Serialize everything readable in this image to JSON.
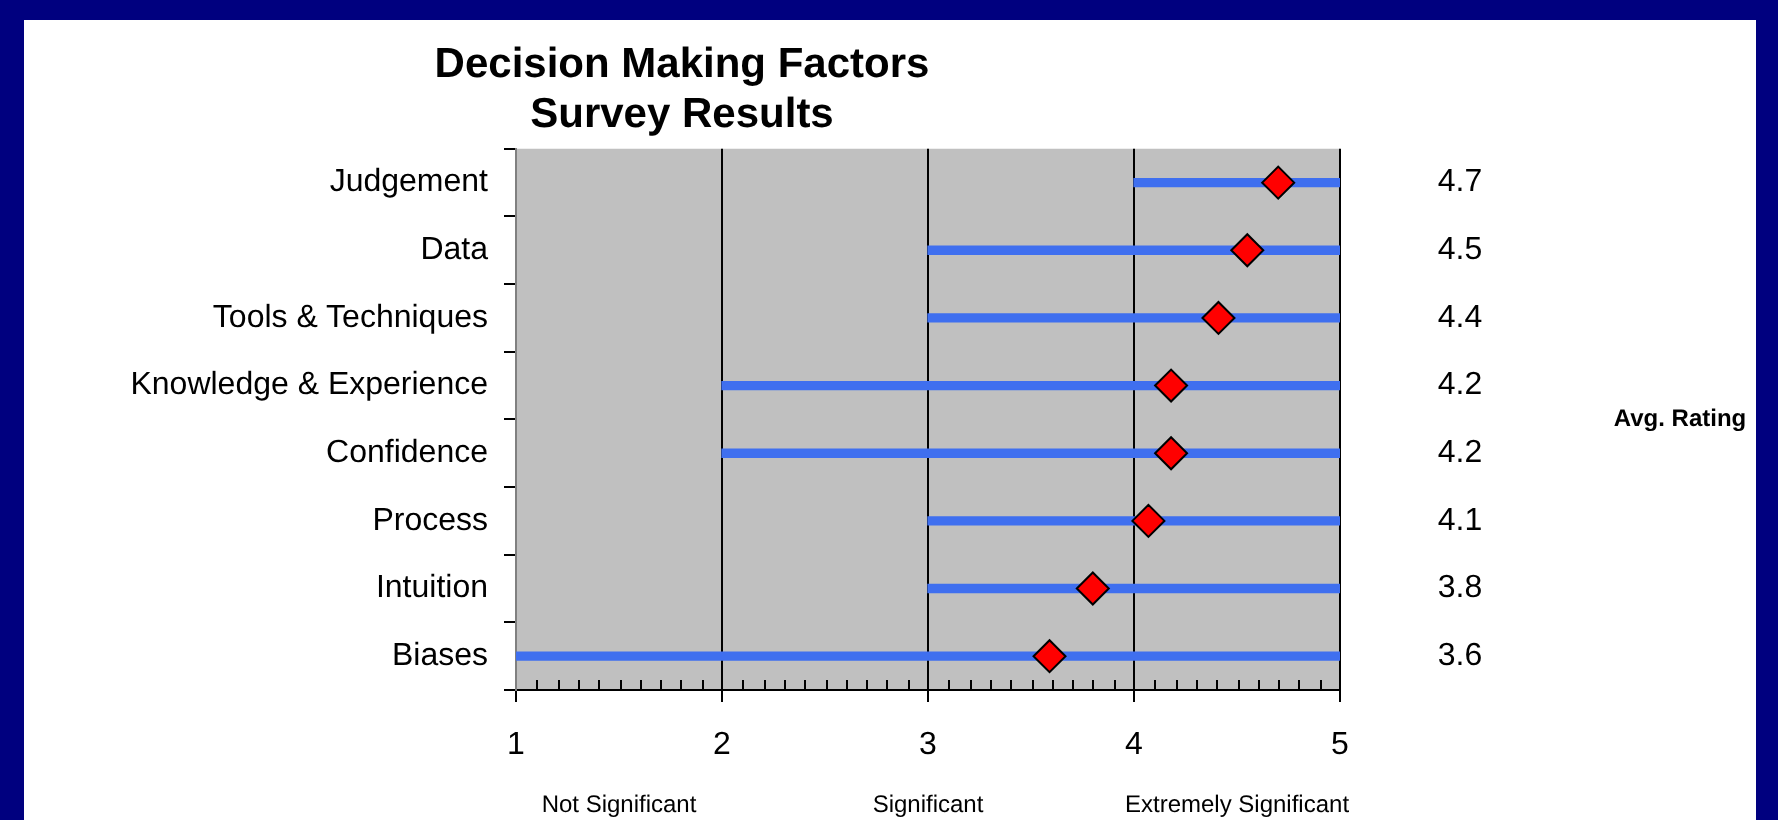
{
  "chart_data": {
    "type": "bar",
    "orientation": "horizontal",
    "title": "Decision Making Factors\nSurvey Results",
    "categories": [
      "Judgement",
      "Data",
      "Tools & Techniques",
      "Knowledge & Experience",
      "Confidence",
      "Process",
      "Intuition",
      "Biases"
    ],
    "series": [
      {
        "color": "#3f6fef",
        "base": [
          4,
          3,
          3,
          2,
          2,
          3,
          3,
          1
        ],
        "values": [
          1,
          2,
          2,
          3,
          3,
          2,
          2,
          4
        ]
      },
      {
        "type": "scatter",
        "color": "#ff0000",
        "x": [
          "Judgement",
          "Data",
          "Tools & Techniques",
          "Knowledge & Experience",
          "Confidence",
          "Process",
          "Intuition",
          "Biases"
        ],
        "values": [
          4.7,
          4.55,
          4.41,
          4.18,
          4.18,
          4.07,
          3.8,
          3.59
        ],
        "value_labels": [
          "4.7",
          "4.5",
          "4.4",
          "4.2",
          "4.2",
          "4.1",
          "3.8",
          "3.6"
        ],
        "marker": "diamond"
      }
    ],
    "xlim": [
      1,
      5
    ],
    "xticks": [
      1,
      {
        "value": 1.1,
        "label": null
      },
      {
        "value": 1.2,
        "label": null
      },
      {
        "value": 1.3,
        "label": null
      },
      {
        "value": 1.4,
        "label": null
      },
      {
        "value": 1.5,
        "label": null
      },
      {
        "value": 1.6,
        "label": null
      },
      {
        "value": 1.7,
        "label": null
      },
      {
        "value": 1.8,
        "label": null
      },
      {
        "value": 1.9,
        "label": null
      },
      2,
      {
        "value": 2.1,
        "label": null
      },
      {
        "value": 2.2,
        "label": null
      },
      {
        "value": 2.3,
        "label": null
      },
      {
        "value": 2.4,
        "label": null
      },
      {
        "value": 2.5,
        "label": null
      },
      {
        "value": 2.6,
        "label": null
      },
      {
        "value": 2.7,
        "label": null
      },
      {
        "value": 2.8,
        "label": null
      },
      {
        "value": 2.9,
        "label": null
      },
      3,
      {
        "value": 3.1,
        "label": null
      },
      {
        "value": 3.2,
        "label": null
      },
      {
        "value": 3.3,
        "label": null
      },
      {
        "value": 3.4,
        "label": null
      },
      {
        "value": 3.5,
        "label": null
      },
      {
        "value": 3.6,
        "label": null
      },
      {
        "value": 3.7,
        "label": null
      },
      {
        "value": 3.8,
        "label": null
      },
      {
        "value": 3.9,
        "label": null
      },
      4,
      {
        "value": 4.1,
        "label": null
      },
      {
        "value": 4.2,
        "label": null
      },
      {
        "value": 4.3,
        "label": null
      },
      {
        "value": 4.4,
        "label": null
      },
      {
        "value": 4.5,
        "label": null
      },
      {
        "value": 4.6,
        "label": null
      },
      {
        "value": 4.7,
        "label": null
      },
      {
        "value": 4.8,
        "label": null
      },
      {
        "value": 4.9,
        "label": null
      },
      5
    ],
    "grid": "x",
    "legend": false,
    "annotations": [
      "Avg. Rating",
      "Not Significant",
      "Significant",
      "Extremely Significant"
    ]
  }
}
